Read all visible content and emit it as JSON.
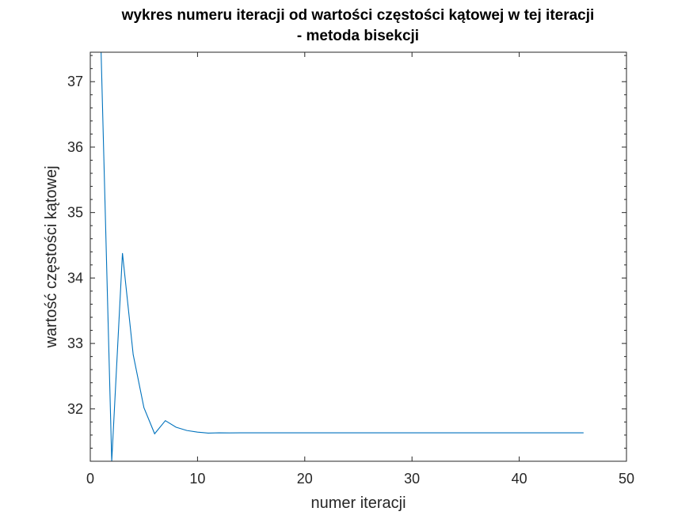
{
  "chart_data": {
    "type": "line",
    "title": [
      "wykres numeru iteracji od wartości częstości kątowej w tej iteracji",
      "- metoda bisekcji"
    ],
    "xlabel": "numer iteracji",
    "ylabel": "wartość częstości kątowej",
    "xlim": [
      0,
      50
    ],
    "ylim": [
      31.2,
      37.45
    ],
    "xticks": [
      0,
      10,
      20,
      30,
      40,
      50
    ],
    "yticks": [
      32,
      33,
      34,
      35,
      36,
      37
    ],
    "xtick_labels": [
      "0",
      "10",
      "20",
      "30",
      "40",
      "50"
    ],
    "ytick_labels": [
      "32",
      "33",
      "34",
      "35",
      "36",
      "37"
    ],
    "grid": false,
    "line_color": "#0072BD",
    "series": [
      {
        "x": [
          1,
          2,
          3,
          4,
          5,
          6,
          7,
          8,
          9,
          10,
          11,
          12,
          13,
          14,
          15,
          16,
          17,
          18,
          19,
          20,
          21,
          22,
          23,
          24,
          25,
          26,
          27,
          28,
          29,
          30,
          31,
          32,
          33,
          34,
          35,
          36,
          37,
          38,
          39,
          40,
          41,
          42,
          43,
          44,
          45,
          46
        ],
        "values": [
          37.5,
          31.2,
          34.38,
          32.83,
          32.02,
          31.62,
          31.82,
          31.72,
          31.67,
          31.645,
          31.63,
          31.635,
          31.633,
          31.634,
          31.634,
          31.634,
          31.634,
          31.634,
          31.634,
          31.634,
          31.634,
          31.634,
          31.634,
          31.634,
          31.634,
          31.634,
          31.634,
          31.634,
          31.634,
          31.634,
          31.634,
          31.634,
          31.634,
          31.634,
          31.634,
          31.634,
          31.634,
          31.634,
          31.634,
          31.634,
          31.634,
          31.634,
          31.634,
          31.634,
          31.634,
          31.634
        ]
      }
    ]
  }
}
